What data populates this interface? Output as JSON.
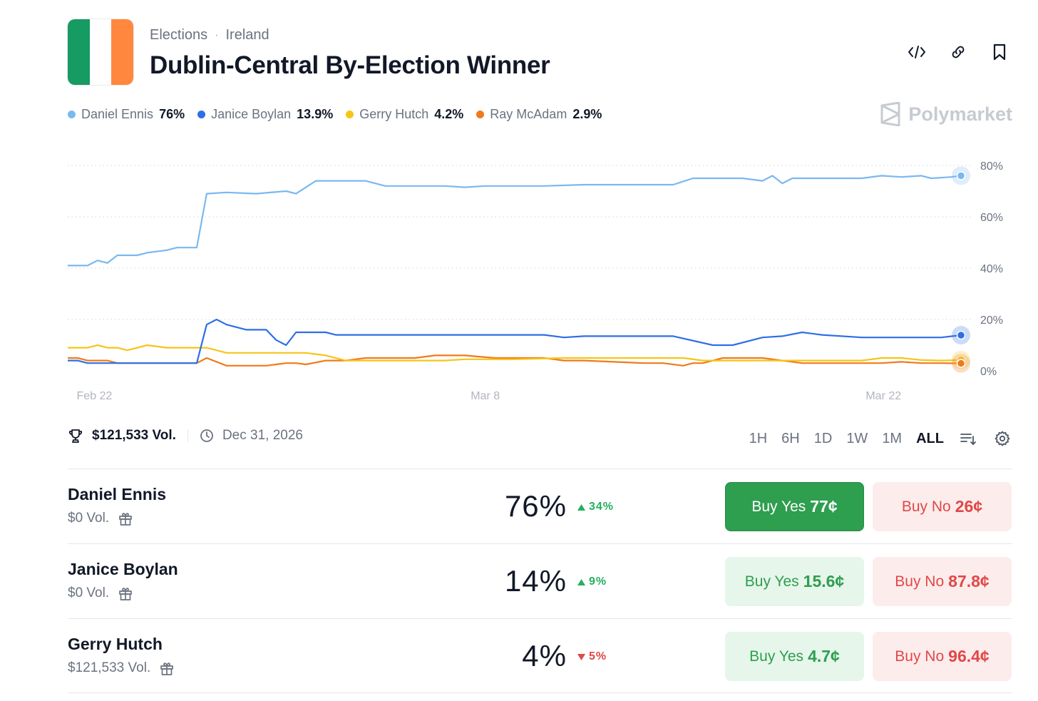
{
  "header": {
    "category": "Elections",
    "region": "Ireland",
    "title": "Dublin-Central By-Election Winner",
    "flag_colors": [
      "#169b62",
      "#ffffff",
      "#ff883e"
    ]
  },
  "actions": {
    "embed_icon": "code-icon",
    "link_icon": "link-icon",
    "bookmark_icon": "bookmark-icon"
  },
  "legend": [
    {
      "name": "Daniel Ennis",
      "value": "76%",
      "color": "#7ab8f0"
    },
    {
      "name": "Janice Boylan",
      "value": "13.9%",
      "color": "#2f6ee6"
    },
    {
      "name": "Gerry Hutch",
      "value": "4.2%",
      "color": "#f5c518"
    },
    {
      "name": "Ray McAdam",
      "value": "2.9%",
      "color": "#f07a1a"
    }
  ],
  "brand": {
    "name": "Polymarket"
  },
  "chart_data": {
    "type": "line",
    "x_ticks": [
      "Feb 22",
      "Mar 8",
      "Mar 22"
    ],
    "y_ticks": [
      "80%",
      "60%",
      "40%",
      "20%",
      "0%"
    ],
    "ylim": [
      0,
      80
    ],
    "grid": true,
    "series": [
      {
        "name": "Daniel Ennis",
        "color": "#7ab8f0",
        "values": [
          [
            0,
            41
          ],
          [
            2,
            41
          ],
          [
            3,
            43
          ],
          [
            4,
            42
          ],
          [
            5,
            45
          ],
          [
            7,
            45
          ],
          [
            8,
            46
          ],
          [
            10,
            47
          ],
          [
            11,
            48
          ],
          [
            13,
            48
          ],
          [
            14,
            69
          ],
          [
            16,
            69.5
          ],
          [
            19,
            69
          ],
          [
            22,
            70
          ],
          [
            23,
            69
          ],
          [
            25,
            74
          ],
          [
            30,
            74
          ],
          [
            32,
            72
          ],
          [
            38,
            72
          ],
          [
            40,
            71.5
          ],
          [
            42,
            72
          ],
          [
            48,
            72
          ],
          [
            52,
            72.5
          ],
          [
            58,
            72.5
          ],
          [
            61,
            72.5
          ],
          [
            63,
            75
          ],
          [
            68,
            75
          ],
          [
            70,
            74
          ],
          [
            71,
            76
          ],
          [
            72,
            73
          ],
          [
            73,
            75
          ],
          [
            80,
            75
          ],
          [
            82,
            76
          ],
          [
            84,
            75.5
          ],
          [
            86,
            76
          ],
          [
            87,
            75
          ],
          [
            89,
            75.5
          ],
          [
            90,
            76
          ]
        ]
      },
      {
        "name": "Janice Boylan",
        "color": "#2f6ee6",
        "values": [
          [
            0,
            4
          ],
          [
            1,
            4
          ],
          [
            2,
            3
          ],
          [
            8,
            3
          ],
          [
            13,
            3
          ],
          [
            14,
            18
          ],
          [
            15,
            20
          ],
          [
            16,
            18
          ],
          [
            18,
            16
          ],
          [
            20,
            16
          ],
          [
            21,
            12
          ],
          [
            22,
            10
          ],
          [
            23,
            15
          ],
          [
            26,
            15
          ],
          [
            27,
            14
          ],
          [
            30,
            14
          ],
          [
            31,
            14
          ],
          [
            40,
            14
          ],
          [
            48,
            14
          ],
          [
            50,
            13
          ],
          [
            52,
            13.5
          ],
          [
            56,
            13.5
          ],
          [
            61,
            13.5
          ],
          [
            65,
            10
          ],
          [
            67,
            10
          ],
          [
            70,
            13
          ],
          [
            72,
            13.5
          ],
          [
            74,
            15
          ],
          [
            76,
            14
          ],
          [
            80,
            13
          ],
          [
            84,
            13
          ],
          [
            88,
            13
          ],
          [
            90,
            13.9
          ]
        ]
      },
      {
        "name": "Gerry Hutch",
        "color": "#f5c518",
        "values": [
          [
            0,
            9
          ],
          [
            1,
            9
          ],
          [
            2,
            9
          ],
          [
            3,
            10
          ],
          [
            4,
            9
          ],
          [
            5,
            9
          ],
          [
            6,
            8
          ],
          [
            8,
            10
          ],
          [
            10,
            9
          ],
          [
            12,
            9
          ],
          [
            14,
            9
          ],
          [
            16,
            7
          ],
          [
            19,
            7
          ],
          [
            21,
            7
          ],
          [
            24,
            7
          ],
          [
            26,
            6
          ],
          [
            28,
            4
          ],
          [
            32,
            4
          ],
          [
            38,
            4
          ],
          [
            40,
            4.5
          ],
          [
            45,
            4.5
          ],
          [
            50,
            5
          ],
          [
            55,
            5
          ],
          [
            58,
            5
          ],
          [
            60,
            5
          ],
          [
            62,
            5
          ],
          [
            64,
            4
          ],
          [
            68,
            4
          ],
          [
            72,
            4
          ],
          [
            75,
            4
          ],
          [
            78,
            4
          ],
          [
            80,
            4
          ],
          [
            82,
            5
          ],
          [
            84,
            5
          ],
          [
            86,
            4.2
          ],
          [
            88,
            4
          ],
          [
            90,
            4.2
          ]
        ]
      },
      {
        "name": "Ray McAdam",
        "color": "#f07a1a",
        "values": [
          [
            0,
            5
          ],
          [
            1,
            5
          ],
          [
            2,
            4
          ],
          [
            4,
            4
          ],
          [
            5,
            3
          ],
          [
            8,
            3
          ],
          [
            12,
            3
          ],
          [
            13,
            3
          ],
          [
            14,
            5
          ],
          [
            16,
            2
          ],
          [
            18,
            2
          ],
          [
            20,
            2
          ],
          [
            21,
            2.5
          ],
          [
            22,
            3
          ],
          [
            23,
            3
          ],
          [
            24,
            2.5
          ],
          [
            26,
            4
          ],
          [
            28,
            4
          ],
          [
            30,
            5
          ],
          [
            32,
            5
          ],
          [
            35,
            5
          ],
          [
            37,
            6
          ],
          [
            40,
            6
          ],
          [
            43,
            5
          ],
          [
            45,
            5
          ],
          [
            48,
            5
          ],
          [
            50,
            4
          ],
          [
            52,
            4
          ],
          [
            55,
            3.5
          ],
          [
            58,
            3
          ],
          [
            60,
            3
          ],
          [
            62,
            2
          ],
          [
            63,
            3
          ],
          [
            64,
            3
          ],
          [
            66,
            5
          ],
          [
            68,
            5
          ],
          [
            70,
            5
          ],
          [
            72,
            4
          ],
          [
            74,
            3
          ],
          [
            76,
            3
          ],
          [
            78,
            3
          ],
          [
            80,
            3
          ],
          [
            82,
            3
          ],
          [
            84,
            3.5
          ],
          [
            86,
            3
          ],
          [
            88,
            3
          ],
          [
            90,
            2.9
          ]
        ]
      }
    ]
  },
  "meta": {
    "volume": "$121,533 Vol.",
    "end_date": "Dec 31, 2026",
    "trophy_icon": "trophy-icon",
    "clock_icon": "clock-icon"
  },
  "ranges": [
    "1H",
    "6H",
    "1D",
    "1W",
    "1M",
    "ALL"
  ],
  "active_range": "ALL",
  "outcomes": [
    {
      "name": "Daniel Ennis",
      "volume": "$0 Vol.",
      "percent": "76%",
      "change": "34%",
      "direction": "up",
      "yes_label": "Buy Yes",
      "yes_price": "77¢",
      "no_label": "Buy No",
      "no_price": "26¢"
    },
    {
      "name": "Janice Boylan",
      "volume": "$0 Vol.",
      "percent": "14%",
      "change": "9%",
      "direction": "up",
      "yes_label": "Buy Yes",
      "yes_price": "15.6¢",
      "no_label": "Buy No",
      "no_price": "87.8¢"
    },
    {
      "name": "Gerry Hutch",
      "volume": "$121,533 Vol.",
      "percent": "4%",
      "change": "5%",
      "direction": "down",
      "yes_label": "Buy Yes",
      "yes_price": "4.7¢",
      "no_label": "Buy No",
      "no_price": "96.4¢"
    }
  ]
}
